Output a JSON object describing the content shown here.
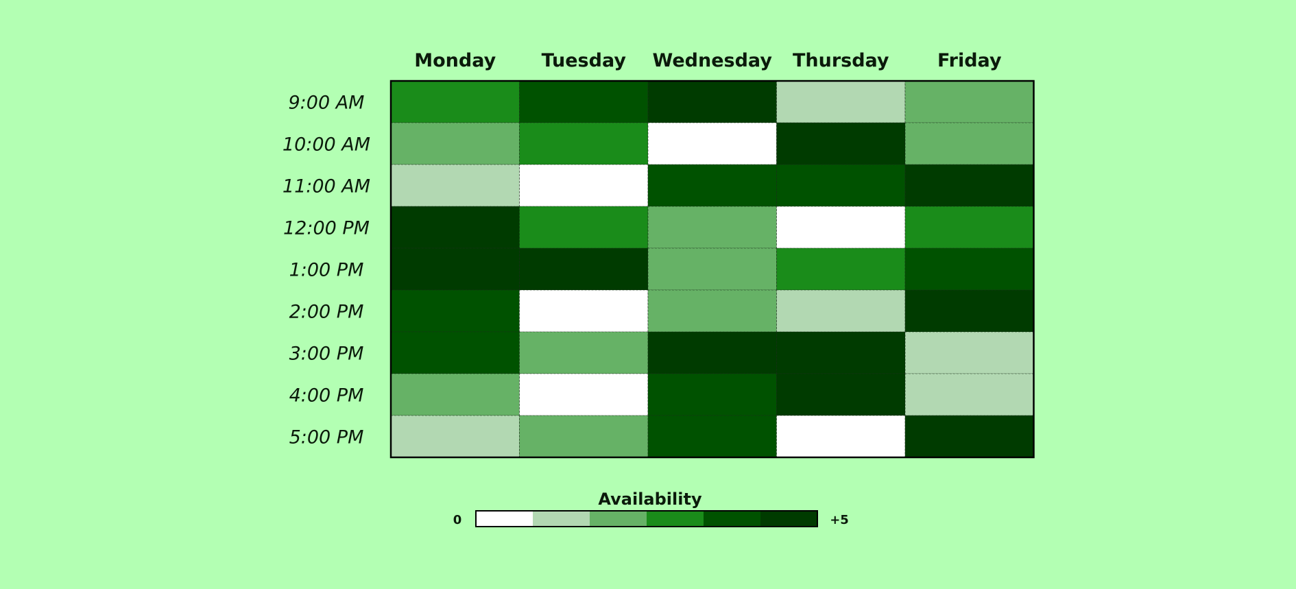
{
  "chart_data": {
    "type": "heatmap",
    "columns": [
      "Monday",
      "Tuesday",
      "Wednesday",
      "Thursday",
      "Friday"
    ],
    "rows": [
      "9:00 AM",
      "10:00 AM",
      "11:00 AM",
      "12:00 PM",
      "1:00 PM",
      "2:00 PM",
      "3:00 PM",
      "4:00 PM",
      "5:00 PM"
    ],
    "values": [
      [
        3,
        4,
        5,
        1,
        2
      ],
      [
        2,
        3,
        0,
        5,
        2
      ],
      [
        1,
        0,
        4,
        4,
        5
      ],
      [
        5,
        3,
        2,
        0,
        3
      ],
      [
        5,
        5,
        2,
        3,
        4
      ],
      [
        4,
        0,
        2,
        1,
        5
      ],
      [
        4,
        2,
        5,
        5,
        1
      ],
      [
        2,
        0,
        4,
        5,
        1
      ],
      [
        1,
        2,
        4,
        0,
        5
      ]
    ],
    "colorscale": [
      "#ffffff",
      "#b2d8b2",
      "#66b266",
      "#1a8c1a",
      "#005200",
      "#003b00"
    ],
    "legend": {
      "title": "Availability",
      "min_label": "0",
      "max_label": "+5"
    }
  }
}
